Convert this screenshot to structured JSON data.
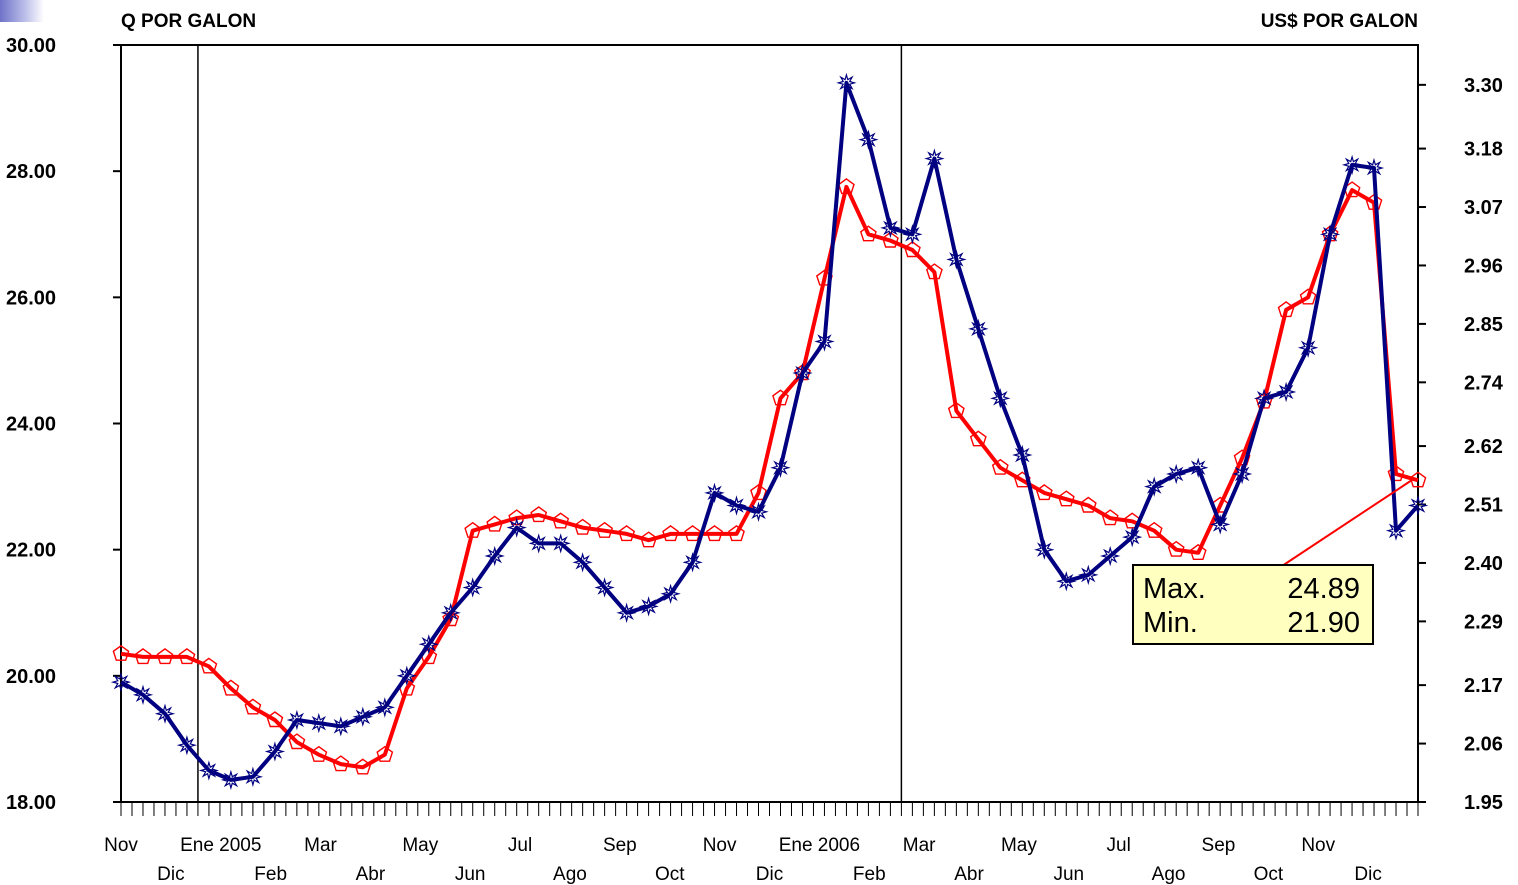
{
  "colors": {
    "price_quetzales": "#000080",
    "price_usd": "#ff0000",
    "box_fill": "#ffffc0",
    "callout_line": "#ff0000"
  },
  "chart_data": {
    "type": "line",
    "left_axis_title": "Q POR GALON",
    "right_axis_title": "US$ POR GALON",
    "ylim_left": [
      18,
      30
    ],
    "ylim_right": [
      1.95,
      3.375
    ],
    "yticks_left": [
      "30.00",
      "28.00",
      "26.00",
      "24.00",
      "22.00",
      "20.00",
      "18.00"
    ],
    "yticks_right": [
      "3.30",
      "3.18",
      "3.07",
      "2.96",
      "2.85",
      "2.74",
      "2.62",
      "2.51",
      "2.40",
      "2.29",
      "2.17",
      "2.06",
      "1.95"
    ],
    "x_month_labels_row1": [
      "Nov",
      "Ene 2005",
      "Mar",
      "May",
      "Jul",
      "Sep",
      "Nov",
      "Ene 2006",
      "Mar",
      "May",
      "Jul",
      "Sep",
      "Nov"
    ],
    "x_month_labels_row2": [
      "Dic",
      "Feb",
      "Abr",
      "Jun",
      "Ago",
      "Oct",
      "Dic",
      "Feb",
      "Abr",
      "Jun",
      "Ago",
      "Oct",
      "Dic"
    ],
    "year_divider_weeks": [
      7,
      71
    ],
    "n_weeks": 118,
    "series": [
      {
        "axis": "left",
        "marker": "star",
        "x": [
          0,
          2,
          4,
          6,
          8,
          10,
          12,
          14,
          16,
          18,
          20,
          22,
          24,
          26,
          28,
          30,
          32,
          34,
          36,
          38,
          40,
          42,
          44,
          46,
          48,
          50,
          52,
          54,
          56,
          58,
          60,
          62,
          64,
          66,
          68,
          70,
          72,
          74,
          76,
          78,
          80,
          82,
          84,
          86,
          88,
          90,
          92,
          94,
          96,
          98,
          100,
          102,
          104,
          106,
          108,
          110,
          112,
          114,
          116,
          118
        ],
        "values": [
          19.9,
          19.7,
          19.4,
          18.9,
          18.5,
          18.35,
          18.4,
          18.8,
          19.3,
          19.25,
          19.2,
          19.35,
          19.5,
          20.0,
          20.5,
          21.0,
          21.4,
          21.9,
          22.35,
          22.1,
          22.1,
          21.8,
          21.4,
          21.0,
          21.1,
          21.3,
          21.8,
          22.9,
          22.7,
          22.6,
          23.3,
          24.8,
          25.3,
          29.4,
          28.5,
          27.1,
          27.0,
          28.2,
          26.6,
          25.5,
          24.4,
          23.5,
          22.0,
          21.5,
          21.6,
          21.9,
          22.2,
          23.0,
          23.2,
          23.3,
          22.4,
          23.2,
          24.4,
          24.5,
          25.2,
          27.0,
          28.1,
          28.05,
          22.3,
          22.7
        ]
      },
      {
        "axis": "left",
        "marker": "pentagon",
        "x": [
          0,
          2,
          4,
          6,
          8,
          10,
          12,
          14,
          16,
          18,
          20,
          22,
          24,
          26,
          28,
          30,
          32,
          34,
          36,
          38,
          40,
          42,
          44,
          46,
          48,
          50,
          52,
          54,
          56,
          58,
          60,
          62,
          64,
          66,
          68,
          70,
          72,
          74,
          76,
          78,
          80,
          82,
          84,
          86,
          88,
          90,
          92,
          94,
          96,
          98,
          100,
          102,
          104,
          106,
          108,
          110,
          112,
          114,
          116,
          118
        ],
        "values": [
          20.35,
          20.3,
          20.3,
          20.3,
          20.15,
          19.8,
          19.5,
          19.3,
          18.95,
          18.75,
          18.6,
          18.55,
          18.75,
          19.8,
          20.3,
          20.9,
          22.3,
          22.4,
          22.5,
          22.55,
          22.45,
          22.35,
          22.3,
          22.25,
          22.15,
          22.25,
          22.25,
          22.25,
          22.25,
          22.9,
          24.4,
          24.8,
          26.3,
          27.75,
          27.0,
          26.9,
          26.75,
          26.4,
          24.2,
          23.75,
          23.3,
          23.1,
          22.9,
          22.8,
          22.7,
          22.5,
          22.45,
          22.3,
          22.0,
          21.95,
          22.7,
          23.45,
          24.35,
          25.8,
          26.0,
          27.0,
          27.7,
          27.5,
          23.2,
          23.1
        ]
      }
    ],
    "stats_box": {
      "max_label": "Max.",
      "max_value": "24.89",
      "min_label": "Min.",
      "min_value": "21.90"
    }
  }
}
